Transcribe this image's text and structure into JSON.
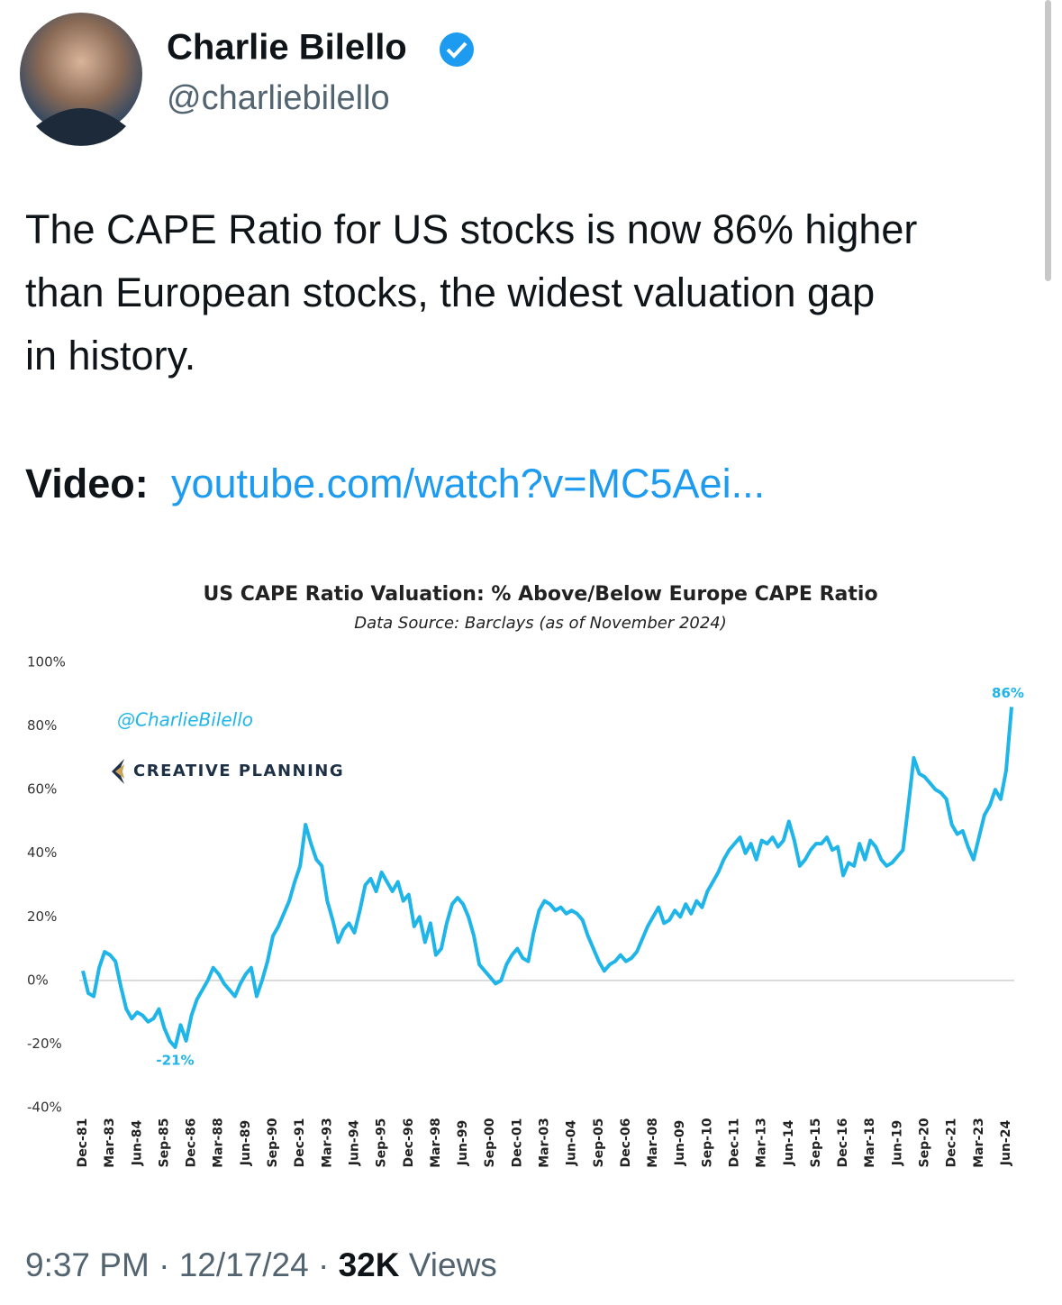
{
  "tweet": {
    "name": "Charlie Bilello",
    "handle": "@charliebilello",
    "text_lines": [
      "The CAPE Ratio for US stocks is now 86% higher",
      "than European stocks, the widest valuation gap",
      "in history."
    ],
    "video_label": "Video:",
    "link": "youtube.com/watch?v=MC5Aei...",
    "time": "9:37 PM",
    "separator": "·",
    "date": "12/17/24",
    "views_count": "32K",
    "views_label": "Views"
  },
  "watermark": {
    "handle": "@CharlieBilello",
    "brand": "CREATIVE PLANNING"
  },
  "chart_data": {
    "type": "line",
    "title": "US CAPE Ratio Valuation: % Above/Below Europe CAPE Ratio",
    "subtitle": "Data Source: Barclays (as of November 2024)",
    "categories": [
      "Dec-81",
      null,
      null,
      null,
      null,
      "Mar-83",
      null,
      null,
      null,
      null,
      "Jun-84",
      null,
      null,
      null,
      null,
      "Sep-85",
      null,
      null,
      null,
      null,
      "Dec-86",
      null,
      null,
      null,
      null,
      "Mar-88",
      null,
      null,
      null,
      null,
      "Jun-89",
      null,
      null,
      null,
      null,
      "Sep-90",
      null,
      null,
      null,
      null,
      "Dec-91",
      null,
      null,
      null,
      null,
      "Mar-93",
      null,
      null,
      null,
      null,
      "Jun-94",
      null,
      null,
      null,
      null,
      "Sep-95",
      null,
      null,
      null,
      null,
      "Dec-96",
      null,
      null,
      null,
      null,
      "Mar-98",
      null,
      null,
      null,
      null,
      "Jun-99",
      null,
      null,
      null,
      null,
      "Sep-00",
      null,
      null,
      null,
      null,
      "Dec-01",
      null,
      null,
      null,
      null,
      "Mar-03",
      null,
      null,
      null,
      null,
      "Jun-04",
      null,
      null,
      null,
      null,
      "Sep-05",
      null,
      null,
      null,
      null,
      "Dec-06",
      null,
      null,
      null,
      null,
      "Mar-08",
      null,
      null,
      null,
      null,
      "Jun-09",
      null,
      null,
      null,
      null,
      "Sep-10",
      null,
      null,
      null,
      null,
      "Dec-11",
      null,
      null,
      null,
      null,
      "Mar-13",
      null,
      null,
      null,
      null,
      "Jun-14",
      null,
      null,
      null,
      null,
      "Sep-15",
      null,
      null,
      null,
      null,
      "Dec-16",
      null,
      null,
      null,
      null,
      "Mar-18",
      null,
      null,
      null,
      null,
      "Jun-19",
      null,
      null,
      null,
      null,
      "Sep-20",
      null,
      null,
      null,
      null,
      "Dec-21",
      null,
      null,
      null,
      null,
      "Mar-23",
      null,
      null,
      null,
      null,
      "Jun-24",
      null
    ],
    "values": [
      3,
      -4,
      -5,
      4,
      9,
      8,
      6,
      -2,
      -9,
      -12,
      -10,
      -11,
      -13,
      -12,
      -9,
      -15,
      -19,
      -21,
      -14,
      -19,
      -11,
      -6,
      -3,
      0,
      4,
      2,
      -1,
      -3,
      -5,
      -1,
      2,
      4,
      -5,
      0,
      6,
      14,
      17,
      21,
      25,
      31,
      36,
      49,
      43,
      38,
      36,
      25,
      19,
      12,
      16,
      18,
      15,
      22,
      30,
      32,
      28,
      34,
      31,
      28,
      31,
      25,
      27,
      17,
      20,
      12,
      18,
      8,
      10,
      18,
      24,
      26,
      24,
      20,
      14,
      5,
      3,
      1,
      -1,
      0,
      5,
      8,
      10,
      7,
      6,
      15,
      22,
      25,
      24,
      22,
      23,
      21,
      22,
      21,
      19,
      14,
      10,
      6,
      3,
      5,
      6,
      8,
      6,
      7,
      9,
      13,
      17,
      20,
      23,
      18,
      19,
      22,
      20,
      24,
      21,
      25,
      23,
      28,
      31,
      34,
      38,
      41,
      43,
      45,
      40,
      43,
      38,
      44,
      43,
      45,
      42,
      44,
      50,
      44,
      36,
      38,
      41,
      43,
      43,
      45,
      41,
      42,
      33,
      37,
      36,
      43,
      38,
      44,
      42,
      38,
      36,
      37,
      39,
      41,
      55,
      70,
      65,
      64,
      62,
      60,
      59,
      57,
      49,
      46,
      47,
      42,
      38,
      45,
      52,
      55,
      60,
      57,
      66,
      86
    ],
    "value_labels": [
      null,
      null,
      null,
      null,
      null,
      null,
      null,
      null,
      null,
      null,
      null,
      null,
      null,
      null,
      null,
      null,
      null,
      "-21%",
      null,
      null,
      null,
      null,
      null,
      null,
      null,
      null,
      null,
      null,
      null,
      null,
      null,
      null,
      null,
      null,
      null,
      null,
      null,
      null,
      null,
      null,
      null,
      null,
      null,
      null,
      null,
      null,
      null,
      null,
      null,
      null,
      null,
      null,
      null,
      null,
      null,
      null,
      null,
      null,
      null,
      null,
      null,
      null,
      null,
      null,
      null,
      null,
      null,
      null,
      null,
      null,
      null,
      null,
      null,
      null,
      null,
      null,
      null,
      null,
      null,
      null,
      null,
      null,
      null,
      null,
      null,
      null,
      null,
      null,
      null,
      null,
      null,
      null,
      null,
      null,
      null,
      null,
      null,
      null,
      null,
      null,
      null,
      null,
      null,
      null,
      null,
      null,
      null,
      null,
      null,
      null,
      null,
      null,
      null,
      null,
      null,
      null,
      null,
      null,
      null,
      null,
      null,
      null,
      null,
      null,
      null,
      null,
      null,
      null,
      null,
      null,
      null,
      null,
      null,
      null,
      null,
      null,
      null,
      null,
      null,
      null,
      null,
      null,
      null,
      null,
      null,
      null,
      null,
      null,
      null,
      null,
      null,
      null,
      null,
      null,
      null,
      null,
      null,
      null,
      null,
      null,
      null,
      null,
      null,
      null,
      null,
      null,
      null,
      null,
      null,
      null,
      null,
      "86%"
    ],
    "color": "#1fb5e8",
    "ylim": [
      -40,
      100
    ],
    "yticks": [
      {
        "value": -40,
        "label": "-40%"
      },
      {
        "value": -20,
        "label": "-20%"
      },
      {
        "value": 0,
        "label": "0%"
      },
      {
        "value": 20,
        "label": "20%"
      },
      {
        "value": 40,
        "label": "40%"
      },
      {
        "value": 60,
        "label": "60%"
      },
      {
        "value": 80,
        "label": "80%"
      },
      {
        "value": 100,
        "label": "100%"
      }
    ],
    "grid": false,
    "reference_line": 0
  }
}
